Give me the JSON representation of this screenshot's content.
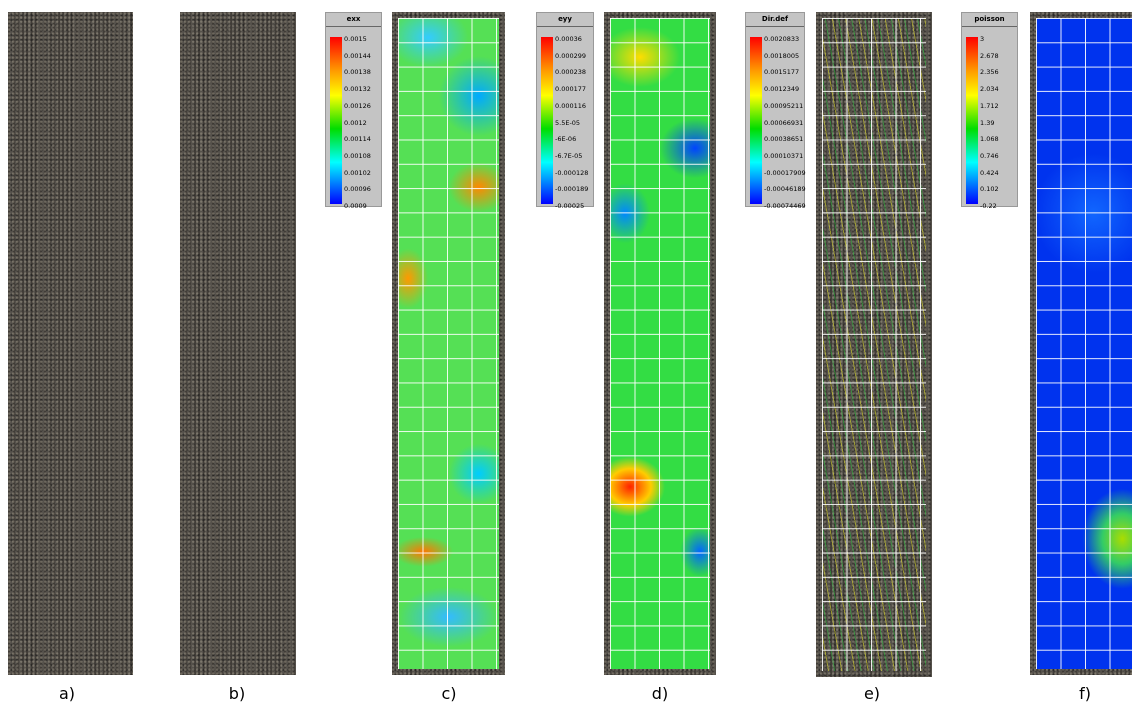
{
  "panels": [
    {
      "label": "a)"
    },
    {
      "label": "b)"
    },
    {
      "label": "c)"
    },
    {
      "label": "d)"
    },
    {
      "label": "e)"
    },
    {
      "label": "f)"
    }
  ],
  "legends": [
    {
      "title": "exx",
      "labels": [
        "0.0015",
        "0.00144",
        "0.00138",
        "0.00132",
        "0.00126",
        "0.0012",
        "0.00114",
        "0.00108",
        "0.00102",
        "0.00096",
        "0.0009"
      ]
    },
    {
      "title": "eyy",
      "labels": [
        "0.00036",
        "0.000299",
        "0.000238",
        "0.000177",
        "0.000116",
        "5.5E-05",
        "-6E-06",
        "-6.7E-05",
        "-0.000128",
        "-0.000189",
        "-0.00025"
      ]
    },
    {
      "title": "Dir.def",
      "labels": [
        "0.0020833",
        "0.0018005",
        "0.0015177",
        "0.0012349",
        "0.00095211",
        "0.00066931",
        "0.00038651",
        "0.00010371",
        "-0.00017909",
        "-0.00046189",
        "-0.00074469"
      ]
    },
    {
      "title": "poisson",
      "labels": [
        "3",
        "2.678",
        "2.356",
        "2.034",
        "1.712",
        "1.39",
        "1.068",
        "0.746",
        "0.424",
        "0.102",
        "-0.22"
      ]
    }
  ]
}
